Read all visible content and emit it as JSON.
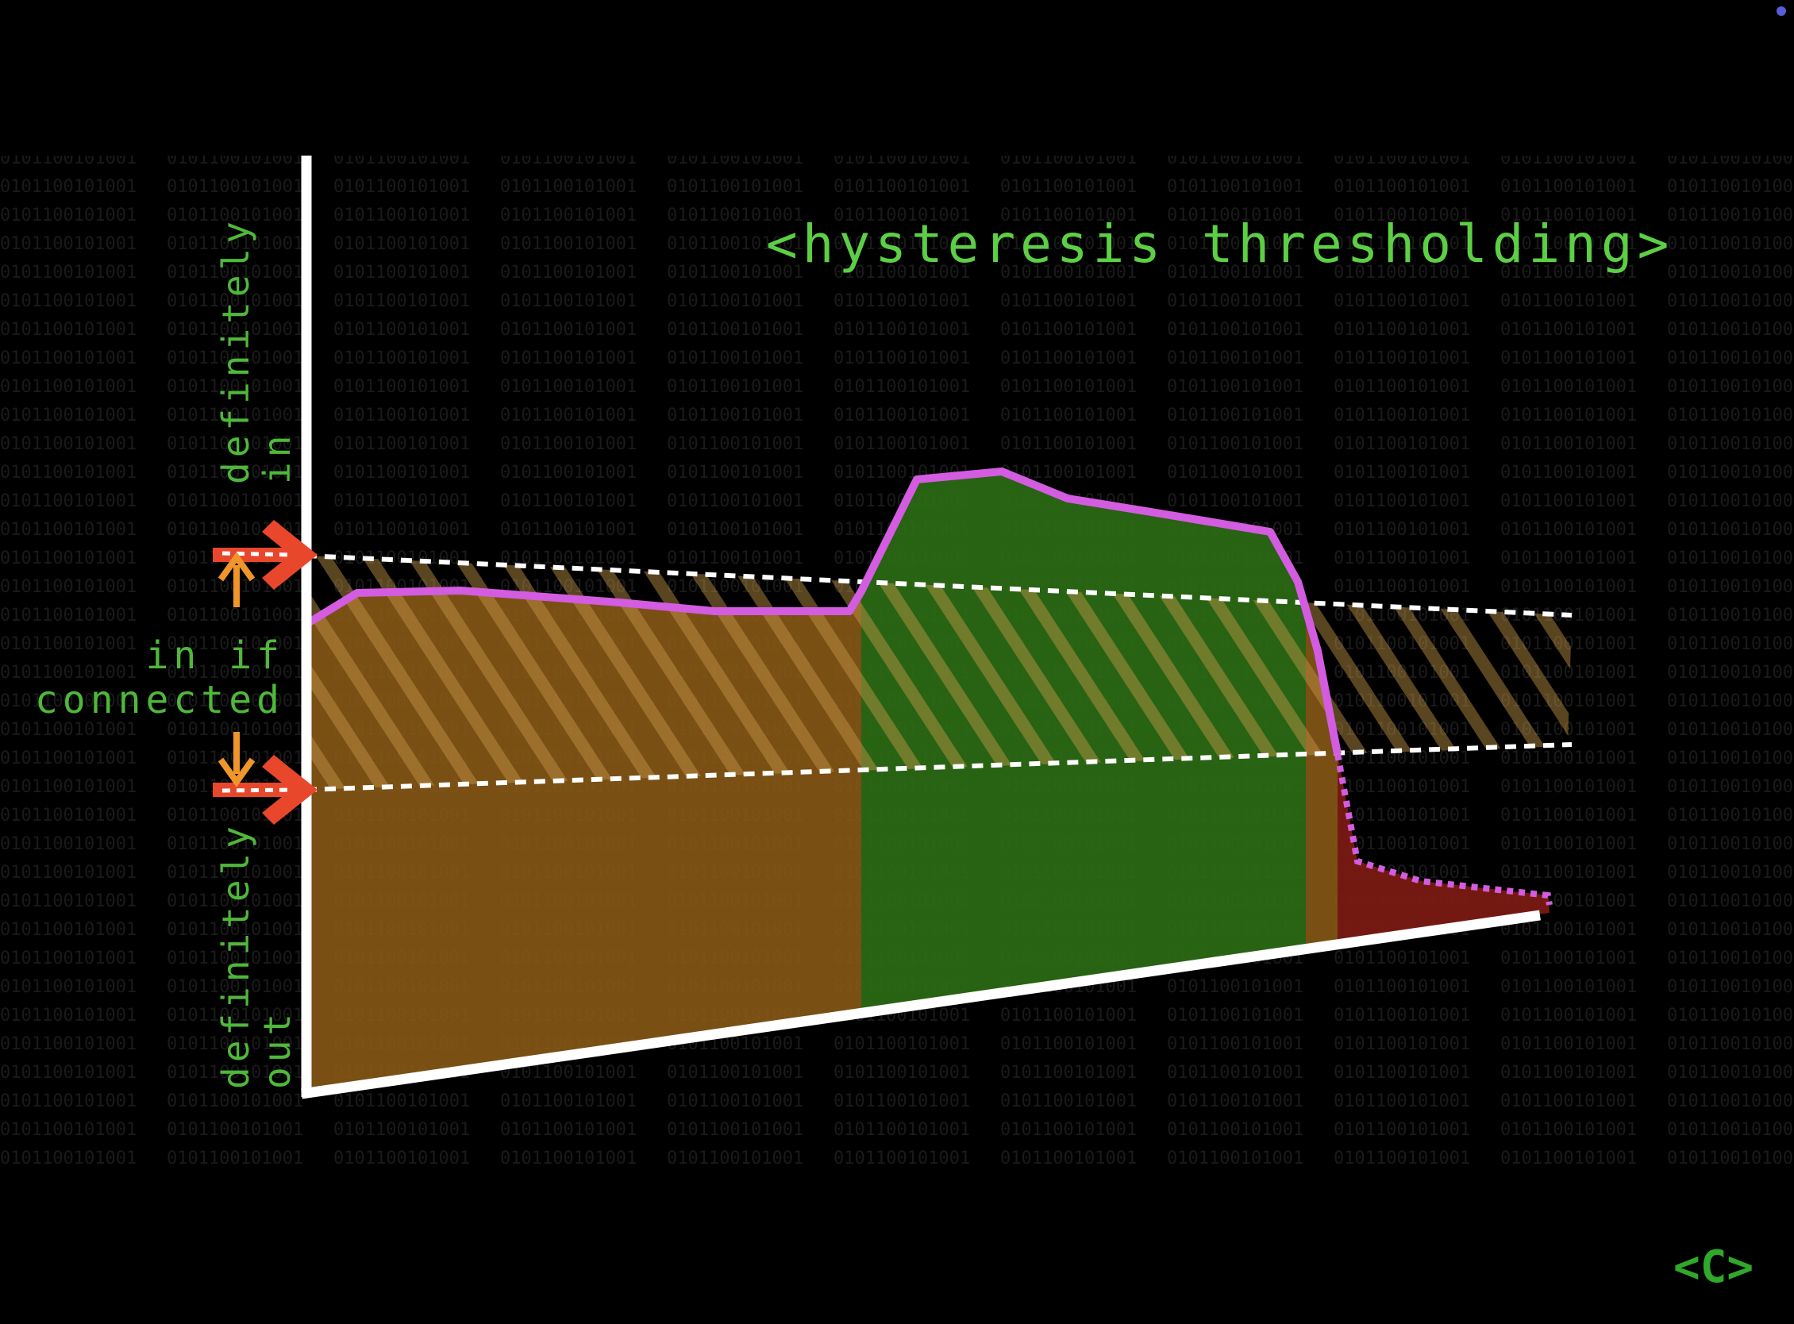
{
  "title": "<hysteresis thresholding>",
  "labels": {
    "definitely_in": [
      "definitely",
      "in"
    ],
    "in_if_connected": [
      "in if",
      "connected"
    ],
    "definitely_out": [
      "definitely",
      "out"
    ]
  },
  "logo": "<C>",
  "colors": {
    "background": "#000000",
    "text_green": "#4fb83a",
    "signal_line": "#d35ce0",
    "fill_weak": "#8a5a17",
    "fill_strong": "#2b6a15",
    "fill_out": "#7a1a12",
    "threshold_arrow": "#e8472c",
    "shift_arrow": "#f0952a",
    "threshold_line": "#ffffff"
  }
}
